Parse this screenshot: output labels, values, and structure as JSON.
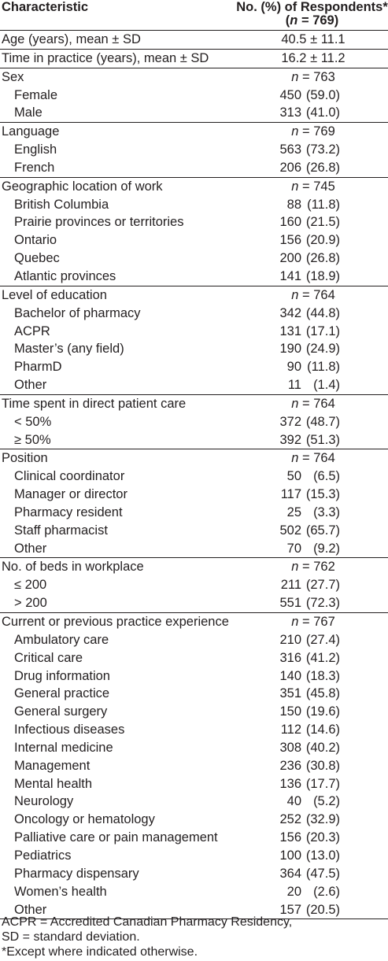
{
  "header": {
    "characteristic": "Characteristic",
    "value": "No. (%) of Respondents*",
    "open": "(",
    "n": "n",
    "total": "= 769)"
  },
  "sections": [
    {
      "label": "Age (years), mean ± SD",
      "value": "40.5 ± 11.1",
      "rows": []
    },
    {
      "label": "Time in practice (years), mean ± SD",
      "value": "16.2 ± 11.2",
      "rows": []
    },
    {
      "label": "Sex",
      "n": "n",
      "n_value": "= 763",
      "rows": [
        {
          "label": "Female",
          "count": "450",
          "pct": "(59.0)"
        },
        {
          "label": "Male",
          "count": "313",
          "pct": "(41.0)"
        }
      ]
    },
    {
      "label": "Language",
      "n": "n",
      "n_value": "= 769",
      "rows": [
        {
          "label": "English",
          "count": "563",
          "pct": "(73.2)"
        },
        {
          "label": "French",
          "count": "206",
          "pct": "(26.8)"
        }
      ]
    },
    {
      "label": "Geographic location of work",
      "n": "n",
      "n_value": "= 745",
      "rows": [
        {
          "label": "British Columbia",
          "count": "88",
          "pct": "(11.8)"
        },
        {
          "label": "Prairie provinces or territories",
          "count": "160",
          "pct": "(21.5)"
        },
        {
          "label": "Ontario",
          "count": "156",
          "pct": "(20.9)"
        },
        {
          "label": "Quebec",
          "count": "200",
          "pct": "(26.8)"
        },
        {
          "label": "Atlantic provinces",
          "count": "141",
          "pct": "(18.9)"
        }
      ]
    },
    {
      "label": "Level of education",
      "n": "n",
      "n_value": "= 764",
      "rows": [
        {
          "label": "Bachelor of pharmacy",
          "count": "342",
          "pct": "(44.8)"
        },
        {
          "label": "ACPR",
          "count": "131",
          "pct": "(17.1)"
        },
        {
          "label": "Master’s (any field)",
          "count": "190",
          "pct": "(24.9)"
        },
        {
          "label": "PharmD",
          "count": "90",
          "pct": "(11.8)"
        },
        {
          "label": "Other",
          "count": "11",
          "pct": "(1.4)"
        }
      ]
    },
    {
      "label": "Time spent in direct patient care",
      "n": "n",
      "n_value": "= 764",
      "rows": [
        {
          "label": "< 50%",
          "count": "372",
          "pct": "(48.7)"
        },
        {
          "label": "≥ 50%",
          "count": "392",
          "pct": "(51.3)"
        }
      ]
    },
    {
      "label": "Position",
      "n": "n",
      "n_value": "= 764",
      "rows": [
        {
          "label": "Clinical coordinator",
          "count": "50",
          "pct": "(6.5)"
        },
        {
          "label": "Manager or director",
          "count": "117",
          "pct": "(15.3)"
        },
        {
          "label": "Pharmacy resident",
          "count": "25",
          "pct": "(3.3)"
        },
        {
          "label": "Staff pharmacist",
          "count": "502",
          "pct": "(65.7)"
        },
        {
          "label": "Other",
          "count": "70",
          "pct": "(9.2)"
        }
      ]
    },
    {
      "label": "No. of beds in workplace",
      "n": "n",
      "n_value": "= 762",
      "rows": [
        {
          "label": "≤ 200",
          "count": "211",
          "pct": "(27.7)"
        },
        {
          "label": "> 200",
          "count": "551",
          "pct": "(72.3)"
        }
      ]
    },
    {
      "label": "Current or previous practice experience",
      "n": "n",
      "n_value": "= 767",
      "rows": [
        {
          "label": "Ambulatory care",
          "count": "210",
          "pct": "(27.4)"
        },
        {
          "label": "Critical care",
          "count": "316",
          "pct": "(41.2)"
        },
        {
          "label": "Drug information",
          "count": "140",
          "pct": "(18.3)"
        },
        {
          "label": "General practice",
          "count": "351",
          "pct": "(45.8)"
        },
        {
          "label": "General surgery",
          "count": "150",
          "pct": "(19.6)"
        },
        {
          "label": "Infectious diseases",
          "count": "112",
          "pct": "(14.6)"
        },
        {
          "label": "Internal medicine",
          "count": "308",
          "pct": "(40.2)"
        },
        {
          "label": "Management",
          "count": "236",
          "pct": "(30.8)"
        },
        {
          "label": "Mental health",
          "count": "136",
          "pct": "(17.7)"
        },
        {
          "label": "Neurology",
          "count": "40",
          "pct": "(5.2)"
        },
        {
          "label": "Oncology or hematology",
          "count": "252",
          "pct": "(32.9)"
        },
        {
          "label": "Palliative care or pain management",
          "count": "156",
          "pct": "(20.3)"
        },
        {
          "label": "Pediatrics",
          "count": "100",
          "pct": "(13.0)"
        },
        {
          "label": "Pharmacy dispensary",
          "count": "364",
          "pct": "(47.5)"
        },
        {
          "label": "Women’s health",
          "count": "20",
          "pct": "(2.6)"
        },
        {
          "label": "Other",
          "count": "157",
          "pct": "(20.5)"
        }
      ]
    }
  ],
  "footnotes": [
    "ACPR = Accredited Canadian Pharmacy Residency,",
    "SD = standard deviation.",
    "*Except where indicated otherwise."
  ]
}
